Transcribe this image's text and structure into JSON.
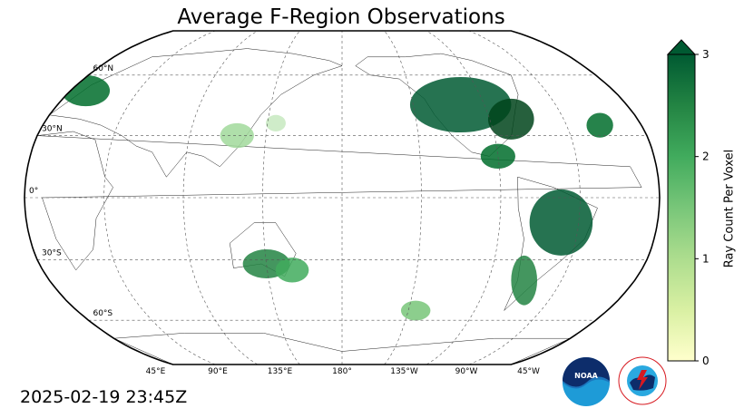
{
  "title": "Average F-Region Observations",
  "timestamp": "2025-02-19 23:45Z",
  "colorbar": {
    "label": "Ray Count Per Voxel",
    "ticks": [
      "0",
      "1",
      "2",
      "3"
    ],
    "range": [
      0,
      3
    ],
    "extend": "max",
    "colors": [
      "#ffffcc",
      "#d9f0a3",
      "#addd8e",
      "#78c679",
      "#41ab5d",
      "#238443",
      "#005a32"
    ]
  },
  "map": {
    "projection": "Robinson",
    "central_longitude": "180°",
    "lat_labels": [
      "60°N",
      "30°N",
      "0°",
      "30°S",
      "60°S"
    ],
    "lon_labels": [
      "45°E",
      "90°E",
      "135°E",
      "180°",
      "135°W",
      "90°W",
      "45°W"
    ],
    "gridlines": "dashed"
  },
  "logos": {
    "noaa": "NOAA",
    "nws": "NATIONAL WEATHER SERVICE"
  }
}
